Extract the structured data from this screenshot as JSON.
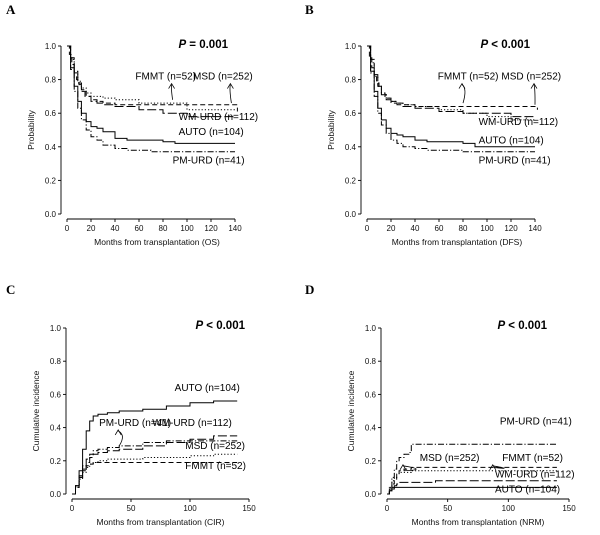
{
  "chart_data": [
    {
      "type": "line",
      "panel_letter": "A",
      "pvalue": {
        "label": "P",
        "text": " = 0.001"
      },
      "xlabel": "Months from transplantation (OS)",
      "ylabel": "Probability",
      "xlim": [
        0,
        150
      ],
      "ylim": [
        0,
        1.0
      ],
      "xticks": [
        0,
        20,
        40,
        60,
        80,
        100,
        120,
        140
      ],
      "yticks": [
        0.0,
        0.2,
        0.4,
        0.6,
        0.8,
        1.0
      ],
      "series": [
        {
          "name": "MSD (n=252)",
          "style": "dashed",
          "x": [
            0,
            2,
            4,
            6,
            8,
            10,
            12,
            15,
            20,
            25,
            30,
            40,
            50,
            60,
            80,
            100,
            120,
            137,
            142
          ],
          "y": [
            1,
            0.95,
            0.89,
            0.84,
            0.8,
            0.77,
            0.74,
            0.7,
            0.68,
            0.67,
            0.66,
            0.65,
            0.65,
            0.65,
            0.65,
            0.65,
            0.65,
            0.65,
            0.61
          ]
        },
        {
          "name": "FMMT (n=52)",
          "style": "dotted",
          "x": [
            0,
            3,
            6,
            9,
            12,
            16,
            20,
            25,
            30,
            40,
            60,
            90,
            100,
            120,
            140
          ],
          "y": [
            1,
            0.92,
            0.85,
            0.79,
            0.75,
            0.72,
            0.7,
            0.7,
            0.69,
            0.68,
            0.66,
            0.66,
            0.62,
            0.62,
            0.62
          ]
        },
        {
          "name": "WM-URD (n=112)",
          "style": "longdash",
          "x": [
            0,
            3,
            6,
            9,
            12,
            16,
            20,
            25,
            30,
            40,
            60,
            80,
            100,
            120,
            140
          ],
          "y": [
            1,
            0.93,
            0.85,
            0.78,
            0.73,
            0.7,
            0.67,
            0.66,
            0.65,
            0.64,
            0.62,
            0.6,
            0.58,
            0.58,
            0.58
          ]
        },
        {
          "name": "AUTO (n=104)",
          "style": "solid",
          "x": [
            0,
            3,
            6,
            9,
            12,
            16,
            20,
            25,
            30,
            40,
            50,
            60,
            80,
            90,
            100,
            120,
            140
          ],
          "y": [
            1,
            0.87,
            0.76,
            0.67,
            0.6,
            0.55,
            0.52,
            0.51,
            0.49,
            0.45,
            0.44,
            0.44,
            0.43,
            0.42,
            0.42,
            0.42,
            0.42
          ]
        },
        {
          "name": "PM-URD (n=41)",
          "style": "dashdot",
          "x": [
            0,
            3,
            6,
            9,
            12,
            16,
            20,
            25,
            30,
            40,
            50,
            60,
            70,
            80,
            90,
            100,
            120,
            140
          ],
          "y": [
            1,
            0.86,
            0.73,
            0.63,
            0.56,
            0.5,
            0.46,
            0.44,
            0.41,
            0.39,
            0.38,
            0.38,
            0.37,
            0.37,
            0.37,
            0.37,
            0.37,
            0.37
          ]
        }
      ],
      "annotations": [
        {
          "text": "FMMT (n=52)",
          "x": 57,
          "y": 0.8,
          "arrow_to": [
            88,
            0.68
          ]
        },
        {
          "text": "MSD (n=252)",
          "x": 105,
          "y": 0.8,
          "arrow_to": [
            137,
            0.66
          ]
        },
        {
          "text": "WM-URD (n=112)",
          "x": 93,
          "y": 0.56
        },
        {
          "text": "AUTO (n=104)",
          "x": 93,
          "y": 0.47
        },
        {
          "text": "PM-URD (n=41)",
          "x": 88,
          "y": 0.3
        }
      ]
    },
    {
      "type": "line",
      "panel_letter": "B",
      "pvalue": {
        "label": "P",
        "text": " < 0.001"
      },
      "xlabel": "Months from transplantation (DFS)",
      "ylabel": "Probability",
      "xlim": [
        0,
        150
      ],
      "ylim": [
        0,
        1.0
      ],
      "xticks": [
        0,
        20,
        40,
        60,
        80,
        100,
        120,
        140
      ],
      "yticks": [
        0.0,
        0.2,
        0.4,
        0.6,
        0.8,
        1.0
      ],
      "series": [
        {
          "name": "MSD (n=252)",
          "style": "dashed",
          "x": [
            0,
            2,
            4,
            6,
            8,
            10,
            12,
            15,
            20,
            25,
            30,
            40,
            60,
            80,
            100,
            120,
            137,
            142
          ],
          "y": [
            1,
            0.93,
            0.87,
            0.82,
            0.78,
            0.75,
            0.72,
            0.69,
            0.67,
            0.66,
            0.65,
            0.64,
            0.64,
            0.64,
            0.64,
            0.64,
            0.64,
            0.62
          ]
        },
        {
          "name": "FMMT (n=52)",
          "style": "dotted",
          "x": [
            0,
            3,
            6,
            9,
            12,
            16,
            20,
            25,
            30,
            40,
            60,
            80,
            100,
            120,
            140
          ],
          "y": [
            1,
            0.9,
            0.82,
            0.76,
            0.72,
            0.69,
            0.67,
            0.66,
            0.65,
            0.64,
            0.62,
            0.6,
            0.58,
            0.56,
            0.56
          ]
        },
        {
          "name": "WM-URD (n=112)",
          "style": "longdash",
          "x": [
            0,
            3,
            6,
            9,
            12,
            16,
            20,
            25,
            30,
            40,
            60,
            80,
            100,
            120,
            140
          ],
          "y": [
            1,
            0.92,
            0.83,
            0.76,
            0.71,
            0.68,
            0.66,
            0.65,
            0.64,
            0.63,
            0.61,
            0.6,
            0.6,
            0.58,
            0.58
          ]
        },
        {
          "name": "AUTO (n=104)",
          "style": "solid",
          "x": [
            0,
            3,
            6,
            9,
            12,
            16,
            20,
            25,
            30,
            40,
            50,
            60,
            80,
            90,
            100,
            120,
            140
          ],
          "y": [
            1,
            0.85,
            0.73,
            0.63,
            0.56,
            0.51,
            0.48,
            0.47,
            0.46,
            0.44,
            0.43,
            0.43,
            0.42,
            0.4,
            0.4,
            0.4,
            0.4
          ]
        },
        {
          "name": "PM-URD (n=41)",
          "style": "dashdot",
          "x": [
            0,
            3,
            6,
            9,
            12,
            16,
            20,
            25,
            30,
            40,
            50,
            60,
            80,
            100,
            120,
            140
          ],
          "y": [
            1,
            0.84,
            0.7,
            0.6,
            0.53,
            0.48,
            0.44,
            0.42,
            0.4,
            0.39,
            0.38,
            0.38,
            0.37,
            0.37,
            0.37,
            0.37
          ]
        }
      ],
      "annotations": [
        {
          "text": "FMMT (n=52)",
          "x": 59,
          "y": 0.8,
          "arrow_to": [
            80,
            0.66
          ]
        },
        {
          "text": "MSD (n=252)",
          "x": 112,
          "y": 0.8,
          "arrow_to": [
            140,
            0.65
          ]
        },
        {
          "text": "WM-URD (n=112)",
          "x": 93,
          "y": 0.53
        },
        {
          "text": "AUTO (n=104)",
          "x": 93,
          "y": 0.42
        },
        {
          "text": "PM-URD (n=41)",
          "x": 93,
          "y": 0.3
        }
      ]
    },
    {
      "type": "line",
      "panel_letter": "C",
      "pvalue": {
        "label": "P",
        "text": " < 0.001"
      },
      "xlabel": "Months from transplantation (CIR)",
      "ylabel": "Cumulative incidence",
      "xlim": [
        0,
        150
      ],
      "ylim": [
        0,
        1.0
      ],
      "xticks": [
        0,
        50,
        100,
        150
      ],
      "yticks": [
        0.0,
        0.2,
        0.4,
        0.6,
        0.8,
        1.0
      ],
      "series": [
        {
          "name": "AUTO (n=104)",
          "style": "solid",
          "x": [
            0,
            3,
            6,
            9,
            12,
            15,
            18,
            22,
            30,
            40,
            50,
            60,
            80,
            100,
            120,
            140
          ],
          "y": [
            0,
            0.05,
            0.14,
            0.27,
            0.38,
            0.44,
            0.47,
            0.48,
            0.49,
            0.5,
            0.5,
            0.51,
            0.53,
            0.55,
            0.56,
            0.56
          ]
        },
        {
          "name": "PM-URD (n=41)",
          "style": "dashdot",
          "x": [
            0,
            3,
            6,
            9,
            12,
            15,
            18,
            22,
            30,
            40,
            60,
            80,
            100,
            120,
            140
          ],
          "y": [
            0,
            0.05,
            0.11,
            0.17,
            0.21,
            0.24,
            0.26,
            0.27,
            0.28,
            0.29,
            0.31,
            0.32,
            0.32,
            0.32,
            0.32
          ]
        },
        {
          "name": "WM-URD (n=112)",
          "style": "longdash",
          "x": [
            0,
            3,
            6,
            9,
            12,
            15,
            18,
            22,
            30,
            40,
            60,
            80,
            100,
            120,
            140
          ],
          "y": [
            0,
            0.04,
            0.1,
            0.15,
            0.19,
            0.22,
            0.24,
            0.25,
            0.26,
            0.27,
            0.29,
            0.31,
            0.33,
            0.35,
            0.35
          ]
        },
        {
          "name": "MSD (n=252)",
          "style": "dotted",
          "x": [
            0,
            3,
            6,
            9,
            12,
            15,
            18,
            22,
            30,
            40,
            60,
            80,
            100,
            120,
            140
          ],
          "y": [
            0,
            0.04,
            0.09,
            0.13,
            0.16,
            0.18,
            0.19,
            0.2,
            0.21,
            0.21,
            0.22,
            0.22,
            0.23,
            0.24,
            0.24
          ]
        },
        {
          "name": "FMMT (n=52)",
          "style": "dashed",
          "x": [
            0,
            3,
            6,
            9,
            12,
            15,
            18,
            22,
            30,
            60,
            100,
            140
          ],
          "y": [
            0,
            0.05,
            0.1,
            0.14,
            0.17,
            0.18,
            0.19,
            0.19,
            0.19,
            0.19,
            0.19,
            0.19
          ]
        }
      ],
      "annotations": [
        {
          "text": "AUTO (n=104)",
          "x": 87,
          "y": 0.62
        },
        {
          "text": "PM-URD (n=41)",
          "x": 23,
          "y": 0.41,
          "arrow_to": [
            40,
            0.29
          ]
        },
        {
          "text": "WM-URD (n=112)",
          "x": 68,
          "y": 0.41
        },
        {
          "text": "MSD (n=252)",
          "x": 96,
          "y": 0.27
        },
        {
          "text": "FMMT (n=52)",
          "x": 96,
          "y": 0.15
        }
      ]
    },
    {
      "type": "line",
      "panel_letter": "D",
      "pvalue": {
        "label": "P",
        "text": " < 0.001"
      },
      "xlabel": "Months from transplantation (NRM)",
      "ylabel": "Cumulative incidence",
      "xlim": [
        0,
        150
      ],
      "ylim": [
        0,
        1.0
      ],
      "xticks": [
        0,
        50,
        100,
        150
      ],
      "yticks": [
        0.0,
        0.2,
        0.4,
        0.6,
        0.8,
        1.0
      ],
      "series": [
        {
          "name": "PM-URD (n=41)",
          "style": "dashdot",
          "x": [
            0,
            2,
            4,
            6,
            8,
            10,
            14,
            18,
            20,
            140
          ],
          "y": [
            0,
            0.04,
            0.1,
            0.15,
            0.2,
            0.22,
            0.24,
            0.25,
            0.3,
            0.3
          ]
        },
        {
          "name": "FMMT (n=52)",
          "style": "dashed",
          "x": [
            0,
            2,
            4,
            6,
            8,
            10,
            14,
            20,
            140
          ],
          "y": [
            0,
            0.03,
            0.06,
            0.09,
            0.12,
            0.14,
            0.15,
            0.16,
            0.16
          ]
        },
        {
          "name": "MSD (n=252)",
          "style": "dotted",
          "x": [
            0,
            2,
            4,
            6,
            8,
            10,
            14,
            20,
            40,
            140
          ],
          "y": [
            0,
            0.04,
            0.08,
            0.1,
            0.12,
            0.13,
            0.13,
            0.14,
            0.14,
            0.14
          ]
        },
        {
          "name": "WM-URD (n=112)",
          "style": "longdash",
          "x": [
            0,
            2,
            4,
            6,
            8,
            10,
            20,
            40,
            60,
            140
          ],
          "y": [
            0,
            0.02,
            0.04,
            0.05,
            0.06,
            0.07,
            0.07,
            0.08,
            0.08,
            0.08
          ]
        },
        {
          "name": "AUTO (n=104)",
          "style": "solid",
          "x": [
            0,
            2,
            4,
            6,
            10,
            140
          ],
          "y": [
            0,
            0.02,
            0.03,
            0.04,
            0.04,
            0.04
          ]
        }
      ],
      "annotations": [
        {
          "text": "PM-URD (n=41)",
          "x": 93,
          "y": 0.42
        },
        {
          "text": "MSD (n=252)",
          "x": 27,
          "y": 0.2,
          "arrow_to": [
            14,
            0.14
          ]
        },
        {
          "text": "FMMT (n=52)",
          "x": 95,
          "y": 0.2,
          "arrow_to": [
            88,
            0.16
          ]
        },
        {
          "text": "WM-URD (n=112)",
          "x": 89,
          "y": 0.1
        },
        {
          "text": "AUTO (n=104)",
          "x": 89,
          "y": 0.01
        }
      ]
    }
  ]
}
